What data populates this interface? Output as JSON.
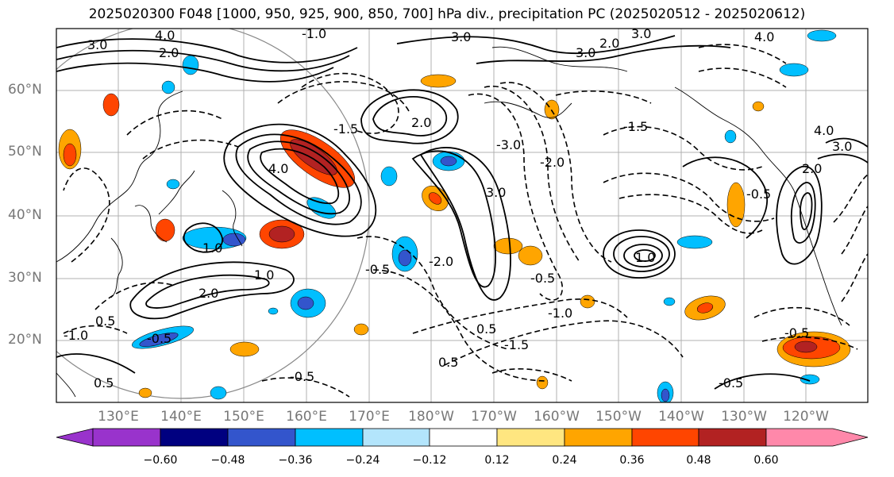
{
  "title": "2025020300 F048 [1000, 950, 925, 900, 850, 700] hPa div., precipitation PC (2025020512 - 2025020612)",
  "lat_labels": [
    "60°N",
    "50°N",
    "40°N",
    "30°N",
    "20°N"
  ],
  "lon_labels": [
    "130°E",
    "140°E",
    "150°E",
    "160°E",
    "170°E",
    "180°W",
    "170°W",
    "160°W",
    "150°W",
    "140°W",
    "130°W",
    "120°W"
  ],
  "colorbar": {
    "ticks": [
      "−0.60",
      "−0.48",
      "−0.36",
      "−0.24",
      "−0.12",
      "0.12",
      "0.24",
      "0.36",
      "0.48",
      "0.60"
    ],
    "colors": [
      "#9933cc",
      "#000080",
      "#3355cc",
      "#00bfff",
      "#b3e5fc",
      "#ffffff",
      "#ffe680",
      "#ffa500",
      "#ff4500",
      "#b22222",
      "#ff88aa"
    ]
  },
  "contour_labels": [
    "2.0",
    "3.0",
    "4.0",
    "1.0",
    "0.5",
    "-0.5",
    "-1.0",
    "-1.5",
    "-2.0",
    "-3.0"
  ],
  "colors": {
    "contour": "#000000",
    "coast": "#000000",
    "grid": "#b0b0b0"
  }
}
